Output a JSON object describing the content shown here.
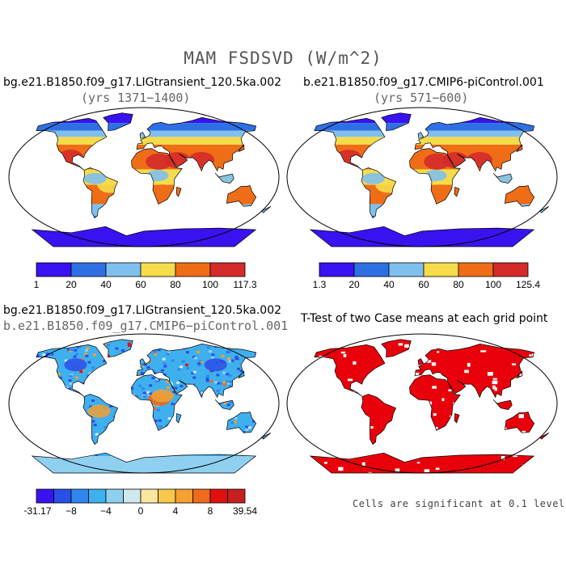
{
  "figure": {
    "title": "MAM FSDSVD (W/m^2)"
  },
  "panels": [
    {
      "id": "case1",
      "label": "bg.e21.B1850.f09_g17.LIGtransient_120.5ka.002",
      "sublabel": "(yrs 1371−1400)",
      "colorbar": {
        "colors": [
          "#3a12f0",
          "#2f6fe4",
          "#7fc0ee",
          "#f5dc4a",
          "#f06d17",
          "#d42a2a"
        ],
        "ticks": [
          "1",
          "20",
          "40",
          "60",
          "80",
          "100",
          "117.3"
        ]
      }
    },
    {
      "id": "case2",
      "label": "b.e21.B1850.f09_g17.CMIP6-piControl.001",
      "sublabel": "(yrs 571−600)",
      "colorbar": {
        "colors": [
          "#3a12f0",
          "#2f6fe4",
          "#7fc0ee",
          "#f5dc4a",
          "#f06d17",
          "#d42a2a"
        ],
        "ticks": [
          "1.3",
          "20",
          "40",
          "60",
          "80",
          "100",
          "125.4"
        ]
      }
    },
    {
      "id": "diff",
      "label": "bg.e21.B1850.f09_g17.LIGtransient_120.5ka.002",
      "sublabel": "b.e21.B1850.f09_g17.CMIP6−piControl.001",
      "colorbar": {
        "colors": [
          "#3a12f0",
          "#2a4fe8",
          "#2f86ee",
          "#3fb0ee",
          "#8fd0f0",
          "#cfe8f0",
          "#fbe6a0",
          "#f7c84a",
          "#f5a030",
          "#ef6a1a",
          "#e01010",
          "#c42020"
        ],
        "ticks": [
          "−31.17",
          "−8",
          "−4",
          "0",
          "4",
          "8",
          "39.54"
        ]
      }
    },
    {
      "id": "ttest",
      "label": "T-Test of two Case means at each grid point",
      "note": "Cells are significant at 0.1 level",
      "significance_color": "#e8000a"
    }
  ]
}
